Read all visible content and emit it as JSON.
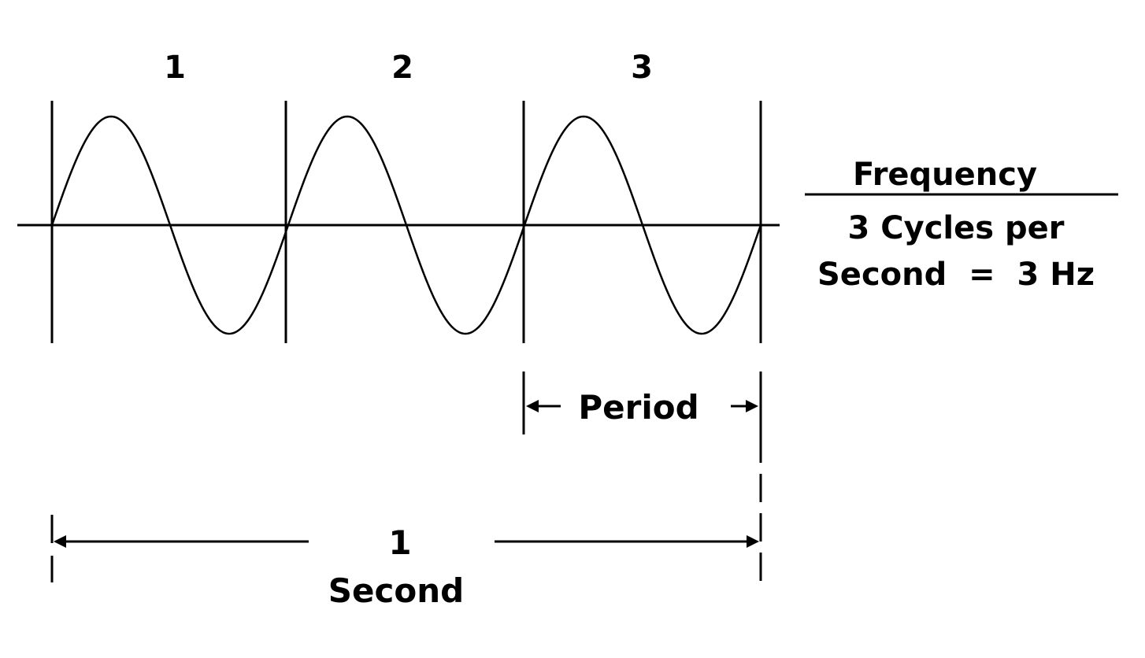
{
  "cycle_labels": [
    "1",
    "2",
    "3"
  ],
  "frequency": {
    "heading": "Frequency",
    "line1": "3 Cycles per",
    "line2": "Second  =  3 Hz"
  },
  "period_label": "Period",
  "duration": {
    "number": "1",
    "unit": "Second"
  },
  "colors": {
    "ink": "#000000",
    "background": "#ffffff"
  }
}
